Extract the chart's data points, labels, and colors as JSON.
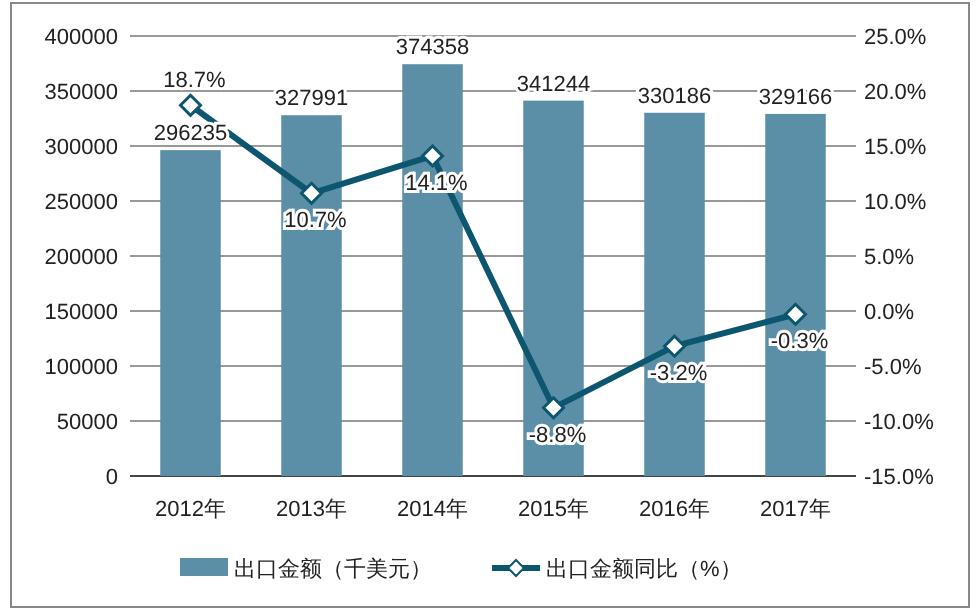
{
  "chart_data": {
    "type": "bar",
    "categories": [
      "2012年",
      "2013年",
      "2014年",
      "2015年",
      "2016年",
      "2017年"
    ],
    "series": [
      {
        "name": "出口金额（千美元）",
        "color": "#5b8fa8",
        "values": [
          296235,
          327991,
          374358,
          341244,
          330186,
          329166
        ],
        "value_labels": [
          "296235",
          "327991",
          "374358",
          "341244",
          "330186",
          "329166"
        ]
      },
      {
        "name": "出口金额同比（%）",
        "type": "line",
        "axis": "y2",
        "color": "#0d5670",
        "marker": "diamond",
        "line_style": "solid",
        "values": [
          18.7,
          10.7,
          14.1,
          -8.8,
          -3.2,
          -0.3
        ],
        "value_labels": [
          "18.7%",
          "10.7%",
          "14.1%",
          "-8.8%",
          "-3.2%",
          "-0.3%"
        ]
      }
    ],
    "ylim": [
      0,
      400000
    ],
    "yticks": [
      0,
      50000,
      100000,
      150000,
      200000,
      250000,
      300000,
      350000,
      400000
    ],
    "y2lim": [
      -15,
      25
    ],
    "y2ticks": [
      {
        "value": -15,
        "label": "-15.0%"
      },
      {
        "value": -10,
        "label": "-10.0%"
      },
      {
        "value": -5,
        "label": "-5.0%"
      },
      {
        "value": 0,
        "label": "0.0%"
      },
      {
        "value": 5,
        "label": "5.0%"
      },
      {
        "value": 10,
        "label": "10.0%"
      },
      {
        "value": 15,
        "label": "15.0%"
      },
      {
        "value": 20,
        "label": "20.0%"
      },
      {
        "value": 25,
        "label": "25.0%"
      }
    ],
    "grid": "y",
    "legend": "bottom"
  }
}
